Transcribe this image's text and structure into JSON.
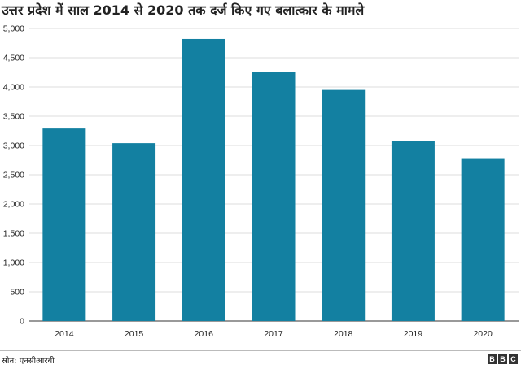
{
  "chart_data": {
    "type": "bar",
    "title": "उत्तर प्रदेश में साल 2014 से 2020 तक दर्ज किए गए बलात्कार के मामले",
    "categories": [
      "2014",
      "2015",
      "2016",
      "2017",
      "2018",
      "2019",
      "2020"
    ],
    "values": [
      3290,
      3040,
      4820,
      4250,
      3950,
      3070,
      2770
    ],
    "ylim": [
      0,
      5000
    ],
    "yticks": [
      "0",
      "500",
      "1,000",
      "1,500",
      "2,000",
      "2,500",
      "3,000",
      "3,500",
      "4,000",
      "4,500",
      "5,000"
    ],
    "ytick_values": [
      0,
      500,
      1000,
      1500,
      2000,
      2500,
      3000,
      3500,
      4000,
      4500,
      5000
    ],
    "xlabel": "",
    "ylabel": "",
    "grid": true,
    "bar_color": "#1380a1"
  },
  "footer": {
    "source": "स्रोत: एनसीआरबी",
    "logo": [
      "B",
      "B",
      "C"
    ]
  }
}
